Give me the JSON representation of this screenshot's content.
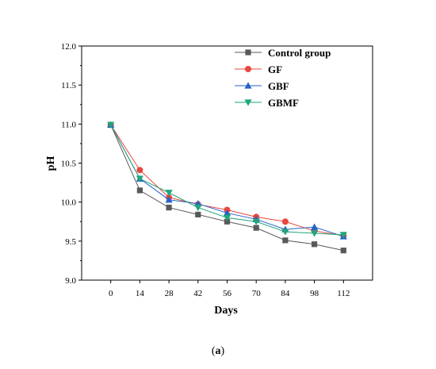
{
  "chart_data": {
    "type": "line",
    "title": "",
    "xlabel": "Days",
    "ylabel": "pH",
    "x": [
      0,
      14,
      28,
      42,
      56,
      70,
      84,
      98,
      112
    ],
    "x_tick_labels": [
      "0",
      "14",
      "28",
      "42",
      "56",
      "70",
      "84",
      "98",
      "112"
    ],
    "ylim": [
      9.0,
      12.0
    ],
    "y_tick_labels": [
      "9.0",
      "9.5",
      "10.0",
      "10.5",
      "11.0",
      "11.5",
      "12.0"
    ],
    "grid": false,
    "legend_position": "top-right",
    "series": [
      {
        "name": "Control group",
        "marker": "square",
        "color": "#595959",
        "values": [
          10.99,
          10.15,
          9.93,
          9.84,
          9.75,
          9.67,
          9.51,
          9.46,
          9.38
        ]
      },
      {
        "name": "GF",
        "marker": "circle",
        "color": "#e8473f",
        "values": [
          10.99,
          10.41,
          10.06,
          9.97,
          9.9,
          9.81,
          9.75,
          9.63,
          9.57
        ]
      },
      {
        "name": "GBF",
        "marker": "triangle-up",
        "color": "#2463c7",
        "values": [
          10.99,
          10.3,
          10.03,
          9.98,
          9.86,
          9.78,
          9.65,
          9.68,
          9.56
        ]
      },
      {
        "name": "GBMF",
        "marker": "triangle-down",
        "color": "#1fa67a",
        "values": [
          10.99,
          10.3,
          10.12,
          9.93,
          9.8,
          9.75,
          9.62,
          9.6,
          9.58
        ]
      }
    ]
  },
  "caption": {
    "open": "(",
    "letter": "a",
    "close": ")"
  }
}
